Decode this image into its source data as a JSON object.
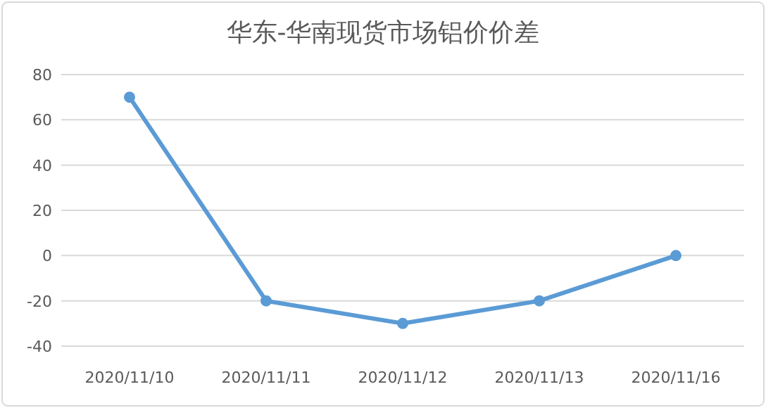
{
  "chart_data": {
    "type": "line",
    "title": "华东-华南现货市场铝价价差",
    "categories": [
      "2020/11/10",
      "2020/11/11",
      "2020/11/12",
      "2020/11/13",
      "2020/11/16"
    ],
    "series": [
      {
        "color": "#5b9bd5",
        "values": [
          70,
          -20,
          -30,
          -20,
          0
        ]
      }
    ],
    "ylim": [
      -40,
      80
    ],
    "yticks": [
      -40,
      -20,
      0,
      20,
      40,
      60,
      80
    ],
    "grid": "y",
    "marker": "circle",
    "line_style": "solid"
  }
}
